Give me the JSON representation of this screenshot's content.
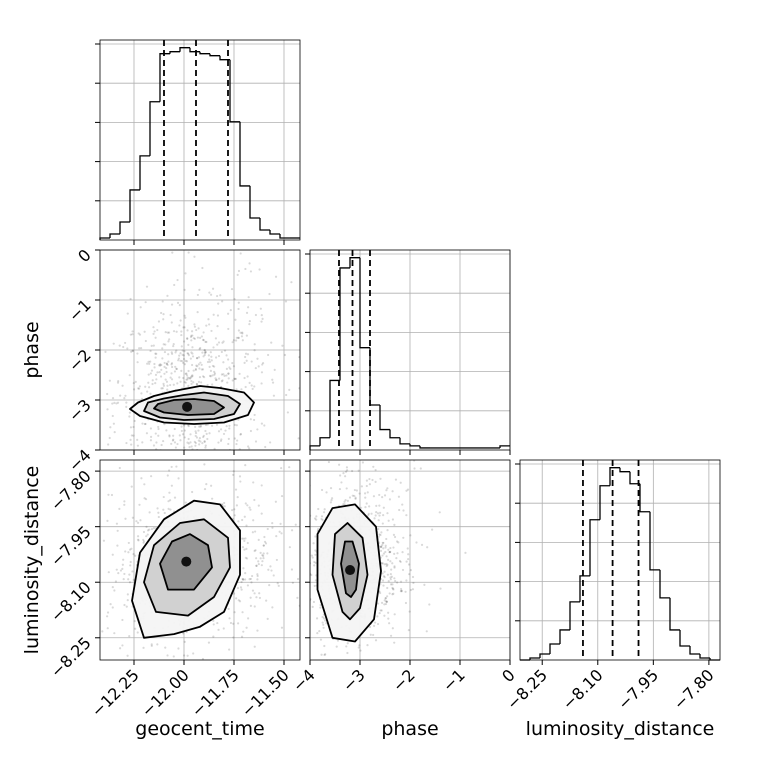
{
  "chart_data": {
    "type": "corner",
    "parameters": [
      "geocent_time",
      "phase",
      "luminosity_distance"
    ],
    "xlabels": [
      "geocent_time",
      "phase",
      "luminosity_distance"
    ],
    "ylabels": [
      "",
      "phase",
      "luminosity_distance"
    ],
    "grid": true,
    "ranges": {
      "geocent_time": [
        -12.42,
        -11.42
      ],
      "phase": [
        -4,
        0
      ],
      "luminosity_distance": [
        -8.31,
        -7.77
      ]
    },
    "ticks": {
      "geocent_time": {
        "values": [
          -12.25,
          -12.0,
          -11.75,
          -11.5
        ],
        "labels": [
          "−12.25",
          "−12.00",
          "−11.75",
          "−11.50"
        ]
      },
      "phase": {
        "values": [
          -4,
          -3,
          -2,
          -1,
          0
        ],
        "labels": [
          "−4",
          "−3",
          "−2",
          "−1",
          "0"
        ]
      },
      "luminosity_distance": {
        "values": [
          -8.25,
          -8.1,
          -7.95,
          -7.8
        ],
        "labels": [
          "−8.25",
          "−8.10",
          "−7.95",
          "−7.80"
        ]
      }
    },
    "histograms": {
      "geocent_time": {
        "bin_edges": [
          -12.42,
          -12.37,
          -12.32,
          -12.27,
          -12.22,
          -12.17,
          -12.12,
          -12.07,
          -12.02,
          -11.97,
          -11.92,
          -11.87,
          -11.82,
          -11.77,
          -11.72,
          -11.67,
          -11.62,
          -11.57,
          -11.52,
          -11.47,
          -11.42
        ],
        "counts": [
          1,
          3,
          9,
          25,
          42,
          69,
          93,
          94,
          96,
          94,
          93,
          92,
          90,
          59,
          27,
          11,
          5,
          3,
          1,
          1
        ],
        "quantiles": [
          -12.1,
          -11.94,
          -11.78
        ]
      },
      "phase": {
        "bin_edges": [
          -4.0,
          -3.8,
          -3.6,
          -3.4,
          -3.2,
          -3.0,
          -2.8,
          -2.6,
          -2.4,
          -2.2,
          -2.0,
          -1.8,
          -1.6,
          -1.4,
          -1.2,
          -1.0,
          -0.8,
          -0.6,
          -0.4,
          -0.2,
          0.0
        ],
        "counts": [
          2,
          6,
          34,
          89,
          94,
          50,
          22,
          10,
          6,
          3,
          2,
          1,
          1,
          1,
          1,
          1,
          1,
          1,
          1,
          2
        ],
        "quantiles": [
          -3.42,
          -3.15,
          -2.8
        ]
      },
      "luminosity_distance": {
        "bin_edges": [
          -8.31,
          -8.283,
          -8.256,
          -8.229,
          -8.202,
          -8.175,
          -8.148,
          -8.121,
          -8.094,
          -8.067,
          -8.04,
          -8.013,
          -7.986,
          -7.959,
          -7.932,
          -7.905,
          -7.878,
          -7.851,
          -7.824,
          -7.797,
          -7.77
        ],
        "counts": [
          0,
          1,
          3,
          8,
          15,
          29,
          42,
          70,
          87,
          96,
          94,
          88,
          74,
          45,
          31,
          15,
          7,
          3,
          1,
          0
        ],
        "quantiles": [
          -8.14,
          -8.06,
          -7.99
        ]
      }
    },
    "contours_2d": [
      {
        "x": "geocent_time",
        "y": "phase",
        "levels": [
          [
            [
              -12.23,
              -3.05
            ],
            [
              -12.15,
              -2.92
            ],
            [
              -12.05,
              -2.82
            ],
            [
              -11.92,
              -2.72
            ],
            [
              -11.82,
              -2.76
            ],
            [
              -11.7,
              -2.85
            ],
            [
              -11.65,
              -3.05
            ],
            [
              -11.68,
              -3.3
            ],
            [
              -11.8,
              -3.45
            ],
            [
              -11.95,
              -3.48
            ],
            [
              -12.1,
              -3.45
            ],
            [
              -12.22,
              -3.32
            ],
            [
              -12.27,
              -3.18
            ]
          ],
          [
            [
              -12.18,
              -3.05
            ],
            [
              -12.1,
              -2.97
            ],
            [
              -12.0,
              -2.9
            ],
            [
              -11.9,
              -2.85
            ],
            [
              -11.78,
              -2.92
            ],
            [
              -11.72,
              -3.08
            ],
            [
              -11.75,
              -3.28
            ],
            [
              -11.85,
              -3.38
            ],
            [
              -12.0,
              -3.4
            ],
            [
              -12.12,
              -3.35
            ],
            [
              -12.2,
              -3.22
            ]
          ],
          [
            [
              -12.13,
              -3.08
            ],
            [
              -12.05,
              -3.0
            ],
            [
              -11.95,
              -2.98
            ],
            [
              -11.85,
              -3.02
            ],
            [
              -11.8,
              -3.15
            ],
            [
              -11.85,
              -3.28
            ],
            [
              -11.98,
              -3.3
            ],
            [
              -12.1,
              -3.25
            ],
            [
              -12.15,
              -3.17
            ]
          ]
        ],
        "scatter_region": {
          "center": [
            -11.98,
            -3.0
          ],
          "spread": [
            0.18,
            0.9
          ]
        }
      },
      {
        "x": "geocent_time",
        "y": "luminosity_distance",
        "levels": [
          [
            [
              -12.2,
              -8.25
            ],
            [
              -12.26,
              -8.15
            ],
            [
              -12.22,
              -8.02
            ],
            [
              -12.1,
              -7.93
            ],
            [
              -11.95,
              -7.88
            ],
            [
              -11.82,
              -7.89
            ],
            [
              -11.72,
              -7.96
            ],
            [
              -11.72,
              -8.08
            ],
            [
              -11.8,
              -8.18
            ],
            [
              -11.92,
              -8.22
            ],
            [
              -12.05,
              -8.24
            ]
          ],
          [
            [
              -12.14,
              -8.18
            ],
            [
              -12.2,
              -8.1
            ],
            [
              -12.15,
              -8.0
            ],
            [
              -12.02,
              -7.94
            ],
            [
              -11.9,
              -7.93
            ],
            [
              -11.78,
              -7.98
            ],
            [
              -11.77,
              -8.06
            ],
            [
              -11.85,
              -8.14
            ],
            [
              -11.98,
              -8.19
            ]
          ],
          [
            [
              -12.08,
              -8.12
            ],
            [
              -12.12,
              -8.05
            ],
            [
              -12.06,
              -7.99
            ],
            [
              -11.97,
              -7.97
            ],
            [
              -11.88,
              -8.0
            ],
            [
              -11.86,
              -8.06
            ],
            [
              -11.95,
              -8.12
            ]
          ]
        ],
        "scatter_region": {
          "center": [
            -11.98,
            -8.06
          ],
          "spread": [
            0.2,
            0.1
          ]
        }
      },
      {
        "x": "phase",
        "y": "luminosity_distance",
        "levels": [
          [
            [
              -3.55,
              -8.25
            ],
            [
              -3.85,
              -8.12
            ],
            [
              -3.85,
              -7.97
            ],
            [
              -3.55,
              -7.9
            ],
            [
              -3.1,
              -7.89
            ],
            [
              -2.68,
              -7.95
            ],
            [
              -2.58,
              -8.07
            ],
            [
              -2.72,
              -8.2
            ],
            [
              -3.1,
              -8.26
            ]
          ],
          [
            [
              -3.35,
              -8.18
            ],
            [
              -3.55,
              -8.08
            ],
            [
              -3.5,
              -7.97
            ],
            [
              -3.25,
              -7.94
            ],
            [
              -2.95,
              -7.98
            ],
            [
              -2.85,
              -8.08
            ],
            [
              -3.0,
              -8.17
            ],
            [
              -3.2,
              -8.2
            ]
          ],
          [
            [
              -3.28,
              -8.13
            ],
            [
              -3.38,
              -8.05
            ],
            [
              -3.3,
              -7.99
            ],
            [
              -3.15,
              -7.99
            ],
            [
              -3.02,
              -8.05
            ],
            [
              -3.08,
              -8.12
            ],
            [
              -3.18,
              -8.14
            ]
          ]
        ],
        "scatter_region": {
          "center": [
            -3.1,
            -8.06
          ],
          "spread": [
            0.45,
            0.1
          ]
        }
      }
    ]
  }
}
